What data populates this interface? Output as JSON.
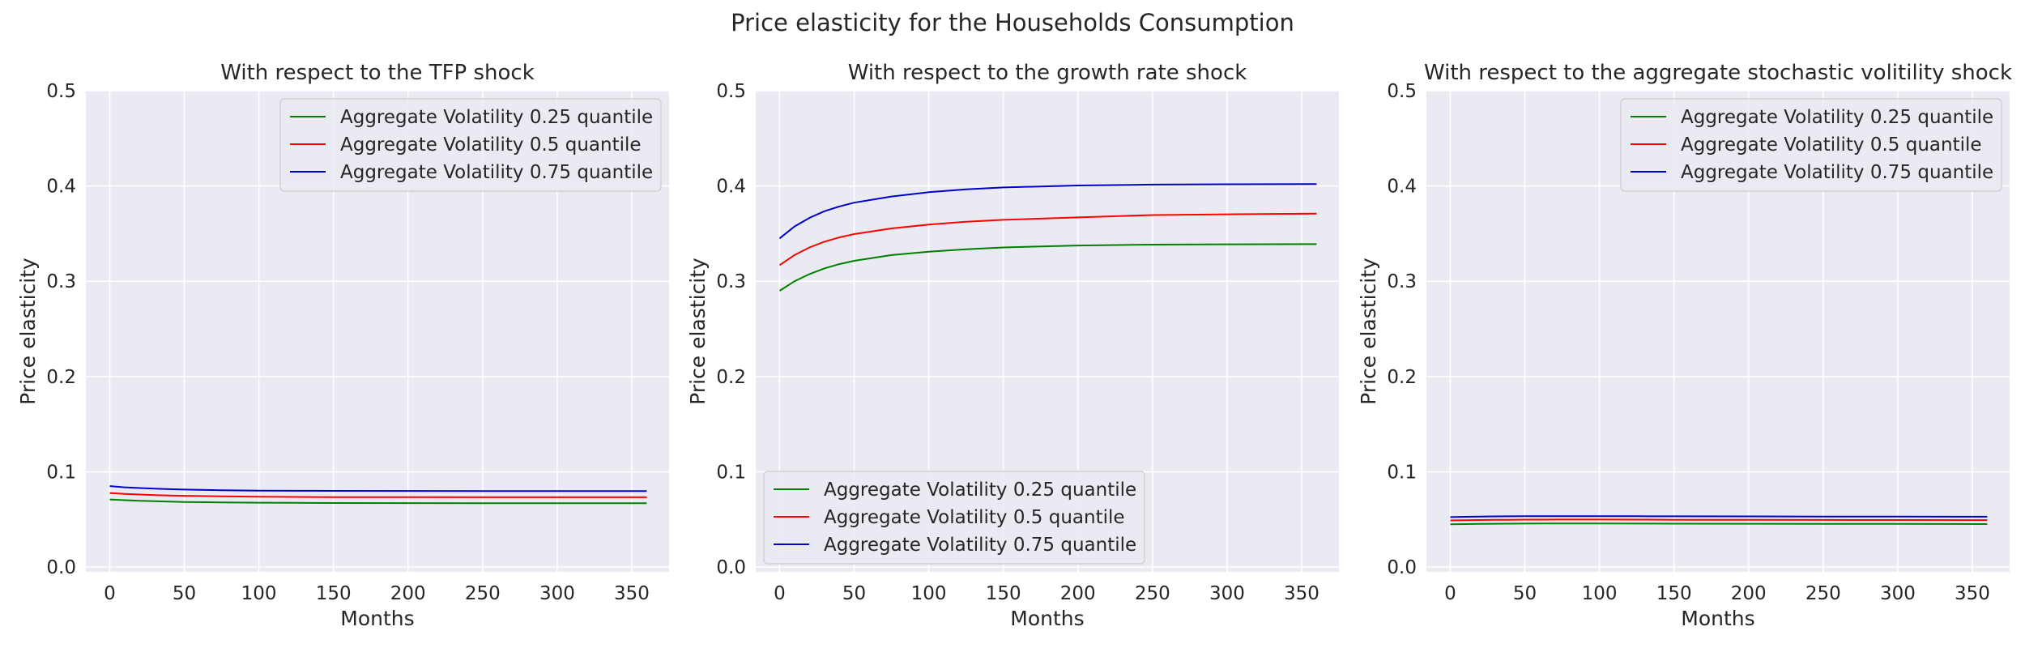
{
  "figure": {
    "suptitle": "Price elasticity for the Households Consumption"
  },
  "series_colors": [
    "#008000",
    "#ff0000",
    "#0000cc"
  ],
  "chart_data": [
    {
      "type": "line",
      "title": "With respect to the TFP shock",
      "xlabel": "Months",
      "ylabel": "Price elasticity",
      "xlim": [
        -16,
        375
      ],
      "ylim": [
        -0.005,
        0.5
      ],
      "xticks": [
        0,
        50,
        100,
        150,
        200,
        250,
        300,
        350
      ],
      "yticks": [
        0.0,
        0.1,
        0.2,
        0.3,
        0.4,
        0.5
      ],
      "grid": true,
      "legend_position": "upper right",
      "x": [
        0,
        10,
        20,
        30,
        40,
        50,
        75,
        100,
        125,
        150,
        200,
        250,
        300,
        360
      ],
      "series": [
        {
          "name": "Aggregate Volatility 0.25 quantile",
          "color": "#008000",
          "values": [
            0.071,
            0.0702,
            0.0696,
            0.0691,
            0.0687,
            0.0684,
            0.0679,
            0.0676,
            0.0674,
            0.0673,
            0.0672,
            0.0671,
            0.0671,
            0.0671
          ]
        },
        {
          "name": "Aggregate Volatility 0.5 quantile",
          "color": "#ff0000",
          "values": [
            0.0778,
            0.0769,
            0.0762,
            0.0756,
            0.0752,
            0.0748,
            0.0742,
            0.0738,
            0.0736,
            0.0735,
            0.0734,
            0.0733,
            0.0733,
            0.0733
          ]
        },
        {
          "name": "Aggregate Volatility 0.75 quantile",
          "color": "#0000cc",
          "values": [
            0.085,
            0.0838,
            0.083,
            0.0823,
            0.0818,
            0.0814,
            0.0807,
            0.0803,
            0.0801,
            0.08,
            0.0799,
            0.0798,
            0.0798,
            0.0798
          ]
        }
      ]
    },
    {
      "type": "line",
      "title": "With respect to the growth rate shock",
      "xlabel": "Months",
      "ylabel": "Price elasticity",
      "xlim": [
        -16,
        375
      ],
      "ylim": [
        -0.005,
        0.5
      ],
      "xticks": [
        0,
        50,
        100,
        150,
        200,
        250,
        300,
        350
      ],
      "yticks": [
        0.0,
        0.1,
        0.2,
        0.3,
        0.4,
        0.5
      ],
      "grid": true,
      "legend_position": "lower left",
      "x": [
        0,
        10,
        20,
        30,
        40,
        50,
        75,
        100,
        125,
        150,
        200,
        250,
        300,
        360
      ],
      "series": [
        {
          "name": "Aggregate Volatility 0.25 quantile",
          "color": "#008000",
          "values": [
            0.29,
            0.3,
            0.3075,
            0.3135,
            0.318,
            0.3215,
            0.3275,
            0.331,
            0.3335,
            0.3355,
            0.3375,
            0.3385,
            0.3388,
            0.339
          ]
        },
        {
          "name": "Aggregate Volatility 0.5 quantile",
          "color": "#ff0000",
          "values": [
            0.317,
            0.3275,
            0.3355,
            0.3415,
            0.346,
            0.3495,
            0.3555,
            0.3595,
            0.3625,
            0.3645,
            0.367,
            0.3695,
            0.3703,
            0.371
          ]
        },
        {
          "name": "Aggregate Volatility 0.75 quantile",
          "color": "#0000cc",
          "values": [
            0.345,
            0.3575,
            0.3665,
            0.3735,
            0.3785,
            0.3825,
            0.389,
            0.3935,
            0.3965,
            0.3985,
            0.4005,
            0.4015,
            0.4018,
            0.402
          ]
        }
      ]
    },
    {
      "type": "line",
      "title": "With respect to the aggregate stochastic volitility shock",
      "xlabel": "Months",
      "ylabel": "Price elasticity",
      "xlim": [
        -16,
        375
      ],
      "ylim": [
        -0.005,
        0.5
      ],
      "xticks": [
        0,
        50,
        100,
        150,
        200,
        250,
        300,
        350
      ],
      "yticks": [
        0.0,
        0.1,
        0.2,
        0.3,
        0.4,
        0.5
      ],
      "grid": true,
      "legend_position": "upper right",
      "x": [
        0,
        10,
        20,
        30,
        40,
        50,
        75,
        100,
        125,
        150,
        200,
        250,
        300,
        360
      ],
      "series": [
        {
          "name": "Aggregate Volatility 0.25 quantile",
          "color": "#008000",
          "values": [
            0.045,
            0.0452,
            0.0454,
            0.0455,
            0.0456,
            0.0457,
            0.0458,
            0.0458,
            0.0457,
            0.0456,
            0.0455,
            0.0454,
            0.0453,
            0.0452
          ]
        },
        {
          "name": "Aggregate Volatility 0.5 quantile",
          "color": "#ff0000",
          "values": [
            0.049,
            0.0492,
            0.0494,
            0.0496,
            0.0497,
            0.0498,
            0.0499,
            0.0499,
            0.0498,
            0.0497,
            0.0496,
            0.0495,
            0.0494,
            0.0493
          ]
        },
        {
          "name": "Aggregate Volatility 0.75 quantile",
          "color": "#0000cc",
          "values": [
            0.0525,
            0.0528,
            0.053,
            0.0532,
            0.0533,
            0.0534,
            0.0535,
            0.0535,
            0.0534,
            0.0533,
            0.0532,
            0.0531,
            0.053,
            0.0529
          ]
        }
      ]
    }
  ]
}
